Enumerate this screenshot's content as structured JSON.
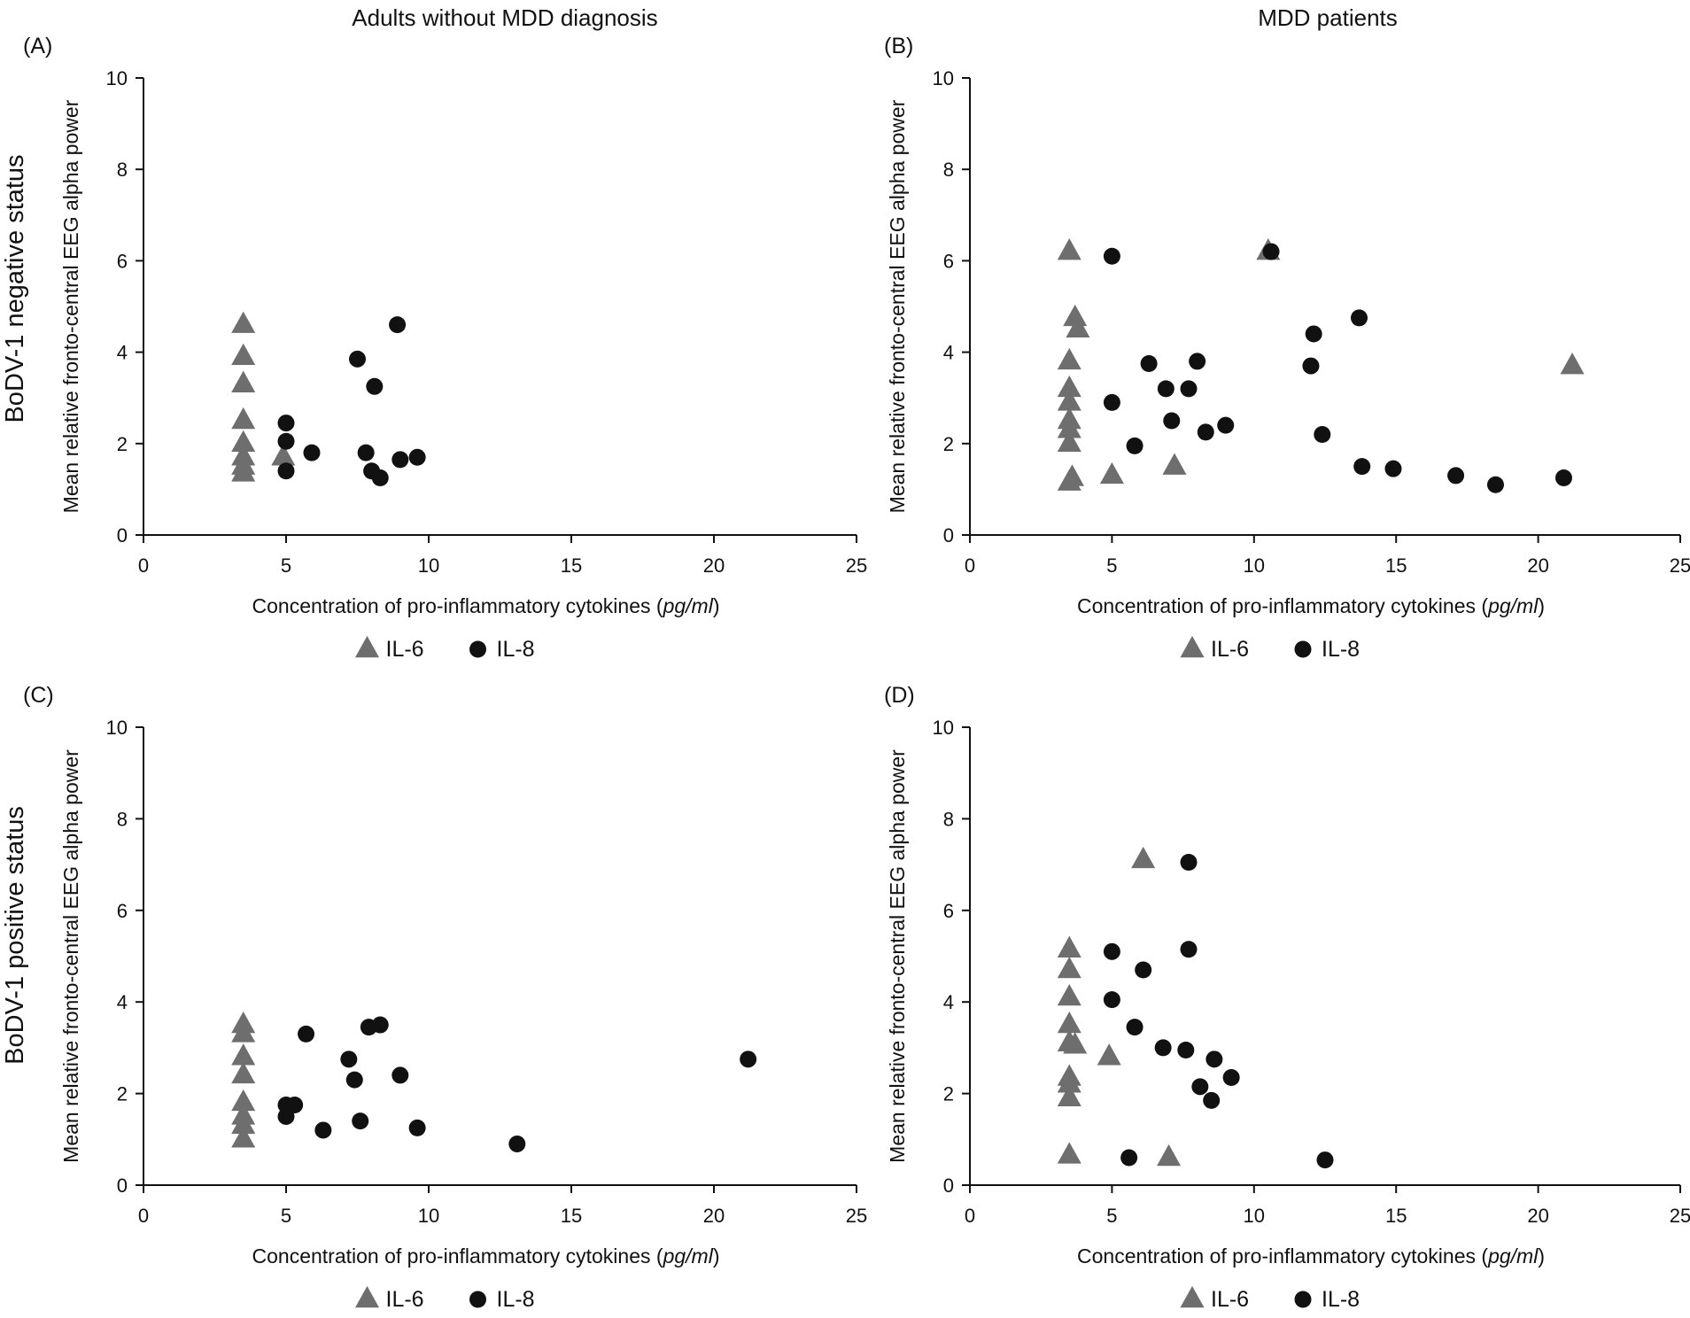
{
  "figure": {
    "column_titles": [
      "Adults without MDD diagnosis",
      "MDD patients"
    ],
    "row_titles": [
      "BoDV-1 negative status",
      "BoDV-1 positive status"
    ]
  },
  "chart_data": [
    {
      "type": "scatter",
      "panel_label": "(A)",
      "xlabel": "Concentration of pro-inflammatory cytokines",
      "xlabel_unit": "pg/ml",
      "ylabel": "Mean relative fronto-central EEG alpha power",
      "xlim": [
        0,
        25
      ],
      "ylim": [
        0,
        10
      ],
      "xticks": [
        "0",
        "5",
        "10",
        "15",
        "20",
        "25"
      ],
      "yticks": [
        "0",
        "2",
        "4",
        "6",
        "8",
        "10"
      ],
      "legend": [
        "IL-6",
        "IL-8"
      ],
      "series": [
        {
          "name": "IL-6",
          "marker": "triangle",
          "color": "#6e6e6e",
          "points": [
            [
              3.5,
              4.6
            ],
            [
              3.5,
              3.9
            ],
            [
              3.5,
              3.3
            ],
            [
              3.5,
              2.5
            ],
            [
              3.5,
              2.0
            ],
            [
              3.5,
              1.7
            ],
            [
              3.5,
              1.5
            ],
            [
              3.5,
              1.35
            ],
            [
              4.9,
              1.7
            ]
          ]
        },
        {
          "name": "IL-8",
          "marker": "circle",
          "color": "#111111",
          "points": [
            [
              5.0,
              2.45
            ],
            [
              5.0,
              2.05
            ],
            [
              5.0,
              1.4
            ],
            [
              5.9,
              1.8
            ],
            [
              7.5,
              3.85
            ],
            [
              8.1,
              3.25
            ],
            [
              7.8,
              1.8
            ],
            [
              8.0,
              1.4
            ],
            [
              8.3,
              1.25
            ],
            [
              8.9,
              4.6
            ],
            [
              9.0,
              1.65
            ],
            [
              9.6,
              1.7
            ]
          ]
        }
      ]
    },
    {
      "type": "scatter",
      "panel_label": "(B)",
      "xlabel": "Concentration of pro-inflammatory cytokines",
      "xlabel_unit": "pg/ml",
      "ylabel": "Mean relative fronto-central EEG alpha power",
      "xlim": [
        0,
        25
      ],
      "ylim": [
        0,
        10
      ],
      "xticks": [
        "0",
        "5",
        "10",
        "15",
        "20",
        "25"
      ],
      "yticks": [
        "0",
        "2",
        "4",
        "6",
        "8",
        "10"
      ],
      "legend": [
        "IL-6",
        "IL-8"
      ],
      "series": [
        {
          "name": "IL-6",
          "marker": "triangle",
          "color": "#6e6e6e",
          "points": [
            [
              3.5,
              6.2
            ],
            [
              3.7,
              4.75
            ],
            [
              3.8,
              4.5
            ],
            [
              3.5,
              3.8
            ],
            [
              3.5,
              3.2
            ],
            [
              3.5,
              2.9
            ],
            [
              3.5,
              2.5
            ],
            [
              3.5,
              2.3
            ],
            [
              3.5,
              2.0
            ],
            [
              3.6,
              1.25
            ],
            [
              3.5,
              1.15
            ],
            [
              5.0,
              1.3
            ],
            [
              7.2,
              1.5
            ],
            [
              10.5,
              6.2
            ],
            [
              21.2,
              3.7
            ]
          ]
        },
        {
          "name": "IL-8",
          "marker": "circle",
          "color": "#111111",
          "points": [
            [
              5.0,
              6.1
            ],
            [
              5.0,
              2.9
            ],
            [
              5.8,
              1.95
            ],
            [
              6.3,
              3.75
            ],
            [
              6.9,
              3.2
            ],
            [
              7.1,
              2.5
            ],
            [
              7.7,
              3.2
            ],
            [
              8.0,
              3.8
            ],
            [
              8.3,
              2.25
            ],
            [
              9.0,
              2.4
            ],
            [
              10.6,
              6.2
            ],
            [
              12.0,
              3.7
            ],
            [
              12.1,
              4.4
            ],
            [
              12.4,
              2.2
            ],
            [
              13.7,
              4.75
            ],
            [
              13.8,
              1.5
            ],
            [
              14.9,
              1.45
            ],
            [
              17.1,
              1.3
            ],
            [
              18.5,
              1.1
            ],
            [
              20.9,
              1.25
            ]
          ]
        }
      ]
    },
    {
      "type": "scatter",
      "panel_label": "(C)",
      "xlabel": "Concentration of pro-inflammatory cytokines",
      "xlabel_unit": "pg/ml",
      "ylabel": "Mean relative fronto-central EEG alpha power",
      "xlim": [
        0,
        25
      ],
      "ylim": [
        0,
        10
      ],
      "xticks": [
        "0",
        "5",
        "10",
        "15",
        "20",
        "25"
      ],
      "yticks": [
        "0",
        "2",
        "4",
        "6",
        "8",
        "10"
      ],
      "legend": [
        "IL-6",
        "IL-8"
      ],
      "series": [
        {
          "name": "IL-6",
          "marker": "triangle",
          "color": "#6e6e6e",
          "points": [
            [
              3.5,
              3.5
            ],
            [
              3.5,
              3.3
            ],
            [
              3.5,
              2.8
            ],
            [
              3.5,
              2.4
            ],
            [
              3.5,
              1.8
            ],
            [
              3.5,
              1.5
            ],
            [
              3.5,
              1.3
            ],
            [
              3.5,
              1.0
            ]
          ]
        },
        {
          "name": "IL-8",
          "marker": "circle",
          "color": "#111111",
          "points": [
            [
              5.0,
              1.75
            ],
            [
              5.0,
              1.5
            ],
            [
              5.3,
              1.75
            ],
            [
              5.7,
              3.3
            ],
            [
              6.3,
              1.2
            ],
            [
              7.2,
              2.75
            ],
            [
              7.4,
              2.3
            ],
            [
              7.6,
              1.4
            ],
            [
              7.9,
              3.45
            ],
            [
              8.3,
              3.5
            ],
            [
              9.0,
              2.4
            ],
            [
              9.6,
              1.25
            ],
            [
              13.1,
              0.9
            ],
            [
              21.2,
              2.75
            ]
          ]
        }
      ]
    },
    {
      "type": "scatter",
      "panel_label": "(D)",
      "xlabel": "Concentration of pro-inflammatory cytokines",
      "xlabel_unit": "pg/ml",
      "ylabel": "Mean relative fronto-central EEG alpha power",
      "xlim": [
        0,
        25
      ],
      "ylim": [
        0,
        10
      ],
      "xticks": [
        "0",
        "5",
        "10",
        "15",
        "20",
        "25"
      ],
      "yticks": [
        "0",
        "2",
        "4",
        "6",
        "8",
        "10"
      ],
      "legend": [
        "IL-6",
        "IL-8"
      ],
      "series": [
        {
          "name": "IL-6",
          "marker": "triangle",
          "color": "#6e6e6e",
          "points": [
            [
              3.5,
              5.15
            ],
            [
              3.5,
              4.7
            ],
            [
              3.5,
              4.1
            ],
            [
              3.5,
              3.5
            ],
            [
              3.5,
              3.1
            ],
            [
              3.7,
              3.05
            ],
            [
              3.5,
              2.35
            ],
            [
              3.5,
              2.2
            ],
            [
              3.5,
              1.9
            ],
            [
              3.5,
              0.65
            ],
            [
              4.9,
              2.8
            ],
            [
              6.1,
              7.1
            ],
            [
              7.0,
              0.6
            ]
          ]
        },
        {
          "name": "IL-8",
          "marker": "circle",
          "color": "#111111",
          "points": [
            [
              5.0,
              5.1
            ],
            [
              5.0,
              4.05
            ],
            [
              5.6,
              0.6
            ],
            [
              5.8,
              3.45
            ],
            [
              6.1,
              4.7
            ],
            [
              6.8,
              3.0
            ],
            [
              7.6,
              2.95
            ],
            [
              7.7,
              5.15
            ],
            [
              7.7,
              7.05
            ],
            [
              8.1,
              2.15
            ],
            [
              8.5,
              1.85
            ],
            [
              8.6,
              2.75
            ],
            [
              9.2,
              2.35
            ],
            [
              12.5,
              0.55
            ]
          ]
        }
      ]
    }
  ]
}
